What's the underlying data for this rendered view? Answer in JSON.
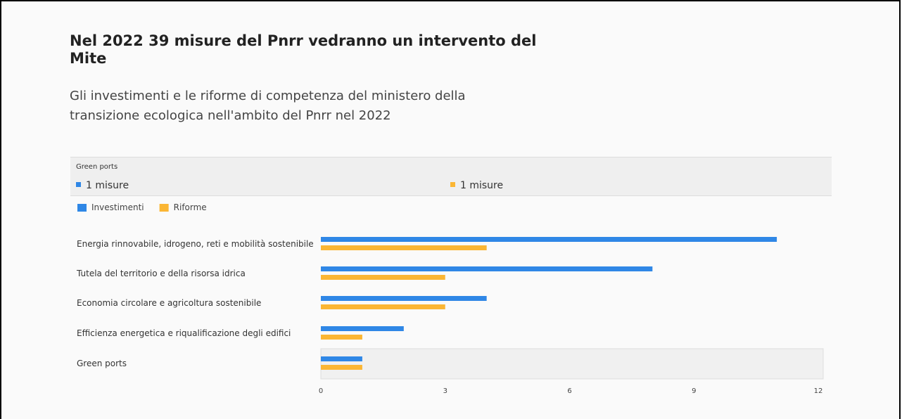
{
  "chart_data": {
    "type": "bar",
    "orientation": "horizontal",
    "title": "Nel 2022 39 misure del Pnrr vedranno un intervento del Mite",
    "subtitle": "Gli investimenti e le riforme di competenza del ministero della transizione ecologica nell'ambito del Pnrr nel 2022",
    "categories": [
      "Energia rinnovabile, idrogeno, reti e mobilità sostenibile",
      "Tutela del territorio e della risorsa idrica",
      "Economia circolare e agricoltura sostenibile",
      "Efficienza energetica e riqualificazione degli edifici",
      "Green ports"
    ],
    "series": [
      {
        "name": "Investimenti",
        "color": "#2f87e6",
        "values": [
          11,
          8,
          4,
          2,
          1
        ]
      },
      {
        "name": "Riforme",
        "color": "#fbb634",
        "values": [
          4,
          3,
          3,
          1,
          1
        ]
      }
    ],
    "xlim": [
      0,
      12
    ],
    "xticks": [
      0,
      3,
      6,
      9,
      12
    ],
    "highlighted": "Green ports",
    "tooltip": {
      "title": "Green ports",
      "items": [
        "1 misure",
        "1 misure"
      ]
    }
  }
}
